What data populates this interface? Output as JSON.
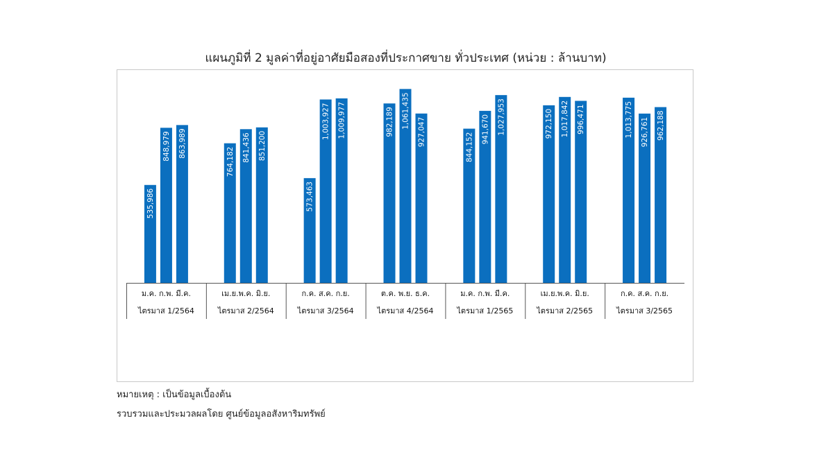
{
  "chart_data": {
    "type": "bar",
    "title": "แผนภูมิที่ 2 มูลค่าที่อยู่อาศัยมือสองที่ประกาศขาย ทั่วประเทศ (หน่วย : ล้านบาท)",
    "ylim": [
      0,
      1150000
    ],
    "grid": false,
    "legend": "none",
    "groups": [
      {
        "months": "ม.ค. ก.พ. มี.ค.",
        "quarter": "ไตรมาส 1/2564",
        "values": [
          535986,
          848979,
          863989
        ],
        "labels": [
          "535,986",
          "848,979",
          "863,989"
        ]
      },
      {
        "months": "เม.ย.พ.ค. มิ.ย.",
        "quarter": "ไตรมาส 2/2564",
        "values": [
          764182,
          841436,
          851200
        ],
        "labels": [
          "764,182",
          "841,436",
          "851,200"
        ]
      },
      {
        "months": "ก.ค. ส.ค. ก.ย.",
        "quarter": "ไตรมาส 3/2564",
        "values": [
          573463,
          1003927,
          1009977
        ],
        "labels": [
          "573,463",
          "1,003,927",
          "1,009,977"
        ]
      },
      {
        "months": "ต.ค. พ.ย. ธ.ค.",
        "quarter": "ไตรมาส 4/2564",
        "values": [
          982189,
          1061435,
          927047
        ],
        "labels": [
          "982,189",
          "1,061,435",
          "927,047"
        ]
      },
      {
        "months": "ม.ค. ก.พ. มี.ค.",
        "quarter": "ไตรมาส 1/2565",
        "values": [
          844152,
          941670,
          1027953
        ],
        "labels": [
          "844,152",
          "941,670",
          "1,027,953"
        ]
      },
      {
        "months": "เม.ย.พ.ค. มิ.ย.",
        "quarter": "ไตรมาส 2/2565",
        "values": [
          972150,
          1017842,
          996471
        ],
        "labels": [
          "972,150",
          "1,017,842",
          "996,471"
        ]
      },
      {
        "months": "ก.ค. ส.ค. ก.ย.",
        "quarter": "ไตรมาส 3/2565",
        "values": [
          1013775,
          926761,
          962188
        ],
        "labels": [
          "1,013,775",
          "926,761",
          "962,188"
        ]
      }
    ],
    "bar_color": "#0b6fbf"
  },
  "notes": {
    "remark": "หมายเหตุ : เป็นข้อมูลเบื้องต้น",
    "source": "รวบรวมและประมวลผลโดย ศูนย์ข้อมูลอสังหาริมทรัพย์"
  }
}
